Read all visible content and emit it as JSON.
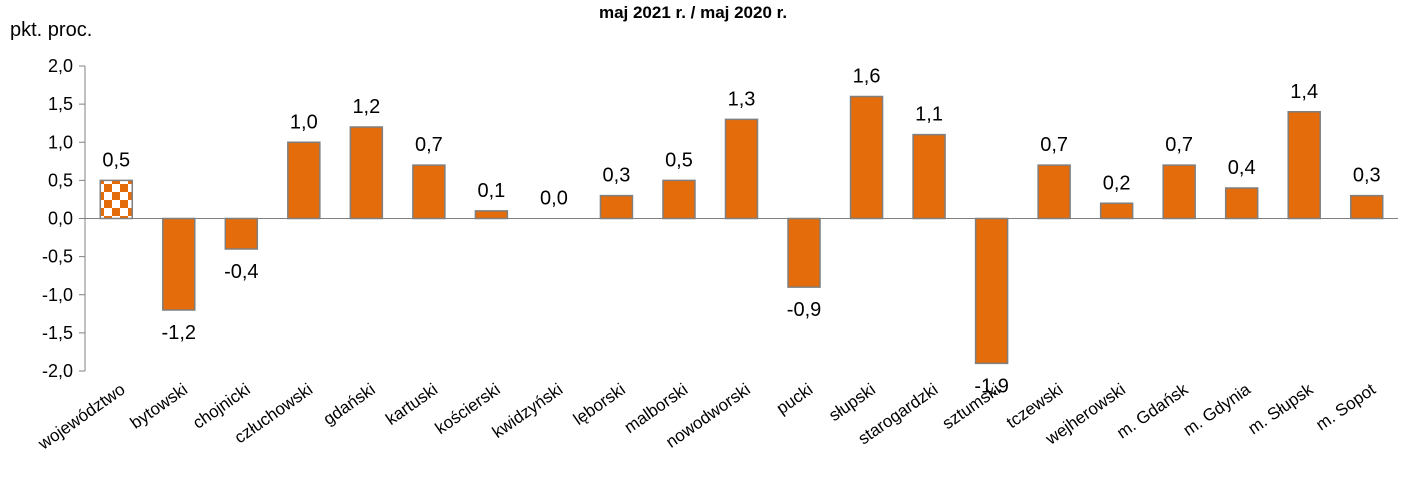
{
  "chart_data": {
    "type": "bar",
    "title": "maj 2021 r. / maj 2020 r.",
    "ylabel": "pkt. proc.",
    "ylim": [
      -2.0,
      2.0
    ],
    "yticks": [
      "2,0",
      "1,5",
      "1,0",
      "0,5",
      "0,0",
      "-0,5",
      "-1,0",
      "-1,5",
      "-2,0"
    ],
    "ytick_values": [
      2.0,
      1.5,
      1.0,
      0.5,
      0.0,
      -0.5,
      -1.0,
      -1.5,
      -2.0
    ],
    "categories": [
      "województwo",
      "bytowski",
      "chojnicki",
      "człuchowski",
      "gdański",
      "kartuski",
      "kościerski",
      "kwidzyński",
      "lęborski",
      "malborski",
      "nowodworski",
      "pucki",
      "słupski",
      "starogardzki",
      "sztumski",
      "tczewski",
      "wejherowski",
      "m. Gdańsk",
      "m. Gdynia",
      "m. Słupsk",
      "m. Sopot"
    ],
    "values": [
      0.5,
      -1.2,
      -0.4,
      1.0,
      1.2,
      0.7,
      0.1,
      0.0,
      0.3,
      0.5,
      1.3,
      -0.9,
      1.6,
      1.1,
      -1.9,
      0.7,
      0.2,
      0.7,
      0.4,
      1.4,
      0.3
    ],
    "value_labels": [
      "0,5",
      "-1,2",
      "-0,4",
      "1,0",
      "1,2",
      "0,7",
      "0,1",
      "0,0",
      "0,3",
      "0,5",
      "1,3",
      "-0,9",
      "1,6",
      "1,1",
      "-1,9",
      "0,7",
      "0,2",
      "0,7",
      "0,4",
      "1,4",
      "0,3"
    ],
    "colors": {
      "bar": "#E46C0A",
      "bar_border": "#7F7F7F",
      "highlight_pattern": "checkered orange/white"
    },
    "grid": false
  }
}
